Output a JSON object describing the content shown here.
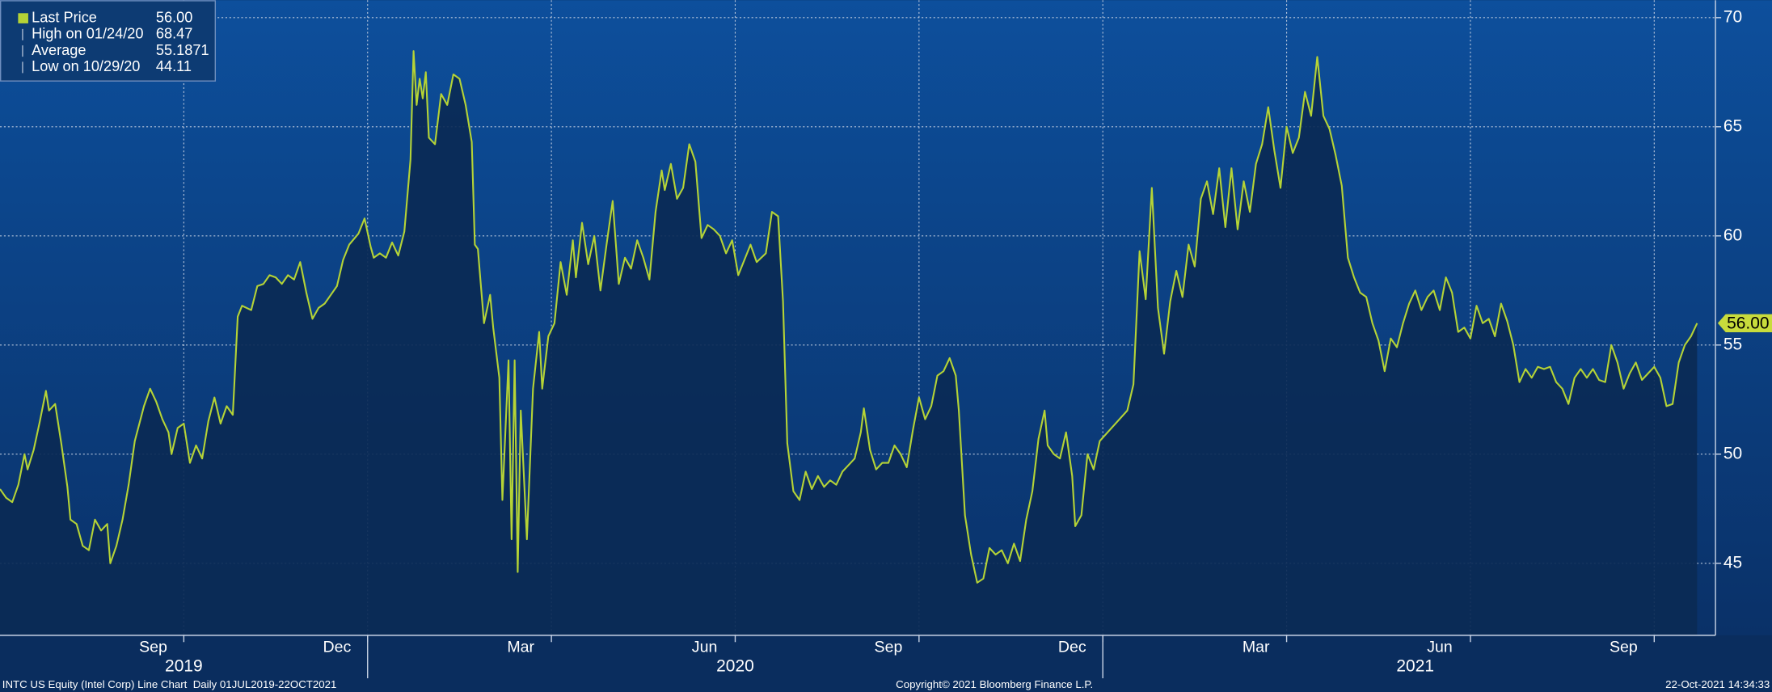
{
  "chart_data": {
    "type": "line",
    "series": [
      {
        "name": "Last Price",
        "color": "#b5d336",
        "x": [
          0,
          0.1,
          0.2,
          0.3,
          0.4,
          0.45,
          0.55,
          0.65,
          0.75,
          0.8,
          0.9,
          1.0,
          1.1,
          1.15,
          1.25,
          1.35,
          1.45,
          1.55,
          1.65,
          1.75,
          1.8,
          1.9,
          2.0,
          2.1,
          2.2,
          2.35,
          2.45,
          2.55,
          2.65,
          2.75,
          2.8,
          2.9,
          3.0,
          3.1,
          3.2,
          3.3,
          3.4,
          3.5,
          3.6,
          3.7,
          3.8,
          3.88,
          3.95,
          4.1,
          4.2,
          4.3,
          4.4,
          4.5,
          4.6,
          4.7,
          4.8,
          4.9,
          5.0,
          5.1,
          5.2,
          5.3,
          5.4,
          5.5,
          5.6,
          5.7,
          5.85,
          5.95,
          6.05,
          6.1,
          6.2,
          6.3,
          6.4,
          6.5,
          6.6,
          6.7,
          6.75,
          6.8,
          6.85,
          6.9,
          6.95,
          7.0,
          7.1,
          7.2,
          7.3,
          7.4,
          7.5,
          7.6,
          7.7,
          7.75,
          7.8,
          7.9,
          8.0,
          8.05,
          8.15,
          8.2,
          8.3,
          8.35,
          8.4,
          8.45,
          8.5,
          8.6,
          8.7,
          8.8,
          8.85,
          8.95,
          9.05,
          9.15,
          9.25,
          9.35,
          9.4,
          9.5,
          9.6,
          9.7,
          9.8,
          9.9,
          10.0,
          10.1,
          10.2,
          10.3,
          10.4,
          10.5,
          10.6,
          10.7,
          10.8,
          10.85,
          10.95,
          11.05,
          11.15,
          11.25,
          11.35,
          11.45,
          11.55,
          11.65,
          11.75,
          11.85,
          11.95,
          12.05,
          12.15,
          12.25,
          12.35,
          12.5,
          12.6,
          12.7,
          12.78,
          12.85,
          12.95,
          13.05,
          13.15,
          13.25,
          13.35,
          13.45,
          13.55,
          13.65,
          13.75,
          13.85,
          13.95,
          14.05,
          14.1,
          14.2,
          14.3,
          14.4,
          14.5,
          14.6,
          14.7,
          14.8,
          14.9,
          15.0,
          15.1,
          15.2,
          15.3,
          15.4,
          15.5,
          15.6,
          15.65,
          15.75,
          15.85,
          15.95,
          16.05,
          16.15,
          16.25,
          16.35,
          16.45,
          16.55,
          16.65,
          16.75,
          16.85,
          16.95,
          17.05,
          17.1,
          17.2,
          17.3,
          17.4,
          17.5,
          17.55,
          17.65,
          17.75,
          17.85,
          17.95,
          18.4,
          18.5,
          18.6,
          18.7,
          18.8,
          18.9,
          19.0,
          19.1,
          19.2,
          19.3,
          19.4,
          19.5,
          19.6,
          19.7,
          19.8,
          19.9,
          20.0,
          20.1,
          20.2,
          20.3,
          20.4,
          20.5,
          20.6,
          20.7,
          20.8,
          20.9,
          21.0,
          21.1,
          21.2,
          21.3,
          21.4,
          21.5,
          21.6,
          21.7,
          21.8,
          21.9,
          22.0,
          22.1,
          22.2,
          22.3,
          22.4,
          22.5,
          22.6,
          22.7,
          22.8,
          22.9,
          23.0,
          23.1,
          23.2,
          23.3,
          23.4,
          23.5,
          23.6,
          23.7,
          23.8,
          23.9,
          24.0,
          24.1,
          24.2,
          24.3,
          24.4,
          24.5,
          24.6,
          24.7,
          24.8,
          24.9,
          25.0,
          25.1,
          25.2,
          25.3,
          25.4,
          25.5,
          25.6,
          25.7,
          25.8,
          25.9,
          26.0,
          26.1,
          26.2,
          26.3,
          26.4,
          26.5,
          26.6,
          26.7,
          26.8,
          26.9,
          27.0,
          27.1,
          27.2,
          27.3,
          27.4,
          27.5,
          27.6,
          27.7
        ],
        "values": [
          48.4,
          48.0,
          47.8,
          48.6,
          50.0,
          49.3,
          50.2,
          51.5,
          52.9,
          52.0,
          52.3,
          50.5,
          48.5,
          47.0,
          46.8,
          45.8,
          45.6,
          47.0,
          46.5,
          46.8,
          45.0,
          45.8,
          47.0,
          48.6,
          50.6,
          52.2,
          53.0,
          52.4,
          51.6,
          51.0,
          50.0,
          51.2,
          51.4,
          49.6,
          50.4,
          49.8,
          51.5,
          52.6,
          51.4,
          52.2,
          51.8,
          56.3,
          56.8,
          56.6,
          57.7,
          57.8,
          58.2,
          58.1,
          57.8,
          58.2,
          58.0,
          58.8,
          57.4,
          56.2,
          56.7,
          56.9,
          57.3,
          57.7,
          58.9,
          59.6,
          60.1,
          60.8,
          59.5,
          59.0,
          59.2,
          59.0,
          59.7,
          59.1,
          60.2,
          63.5,
          68.47,
          66.0,
          67.2,
          66.3,
          67.5,
          64.5,
          64.2,
          66.5,
          66.0,
          67.4,
          67.2,
          66.0,
          64.3,
          59.6,
          59.4,
          56.0,
          57.3,
          55.8,
          53.5,
          47.9,
          54.3,
          46.1,
          54.3,
          44.6,
          52.0,
          46.1,
          53.0,
          55.6,
          53.0,
          55.4,
          56.0,
          58.8,
          57.3,
          59.8,
          58.1,
          60.6,
          58.7,
          60.0,
          57.5,
          59.6,
          61.6,
          57.8,
          59.0,
          58.5,
          59.8,
          59.0,
          58.0,
          61.1,
          63.0,
          62.1,
          63.3,
          61.7,
          62.2,
          64.2,
          63.4,
          59.9,
          60.5,
          60.3,
          60.0,
          59.2,
          59.8,
          58.2,
          58.9,
          59.6,
          58.8,
          59.2,
          61.1,
          60.9,
          57.0,
          50.5,
          48.3,
          47.9,
          49.2,
          48.4,
          49.0,
          48.5,
          48.8,
          48.6,
          49.2,
          49.5,
          49.8,
          51.0,
          52.1,
          50.2,
          49.3,
          49.6,
          49.6,
          50.4,
          50.0,
          49.4,
          51.1,
          52.6,
          51.6,
          52.2,
          53.6,
          53.8,
          54.4,
          53.6,
          52.0,
          47.2,
          45.4,
          44.11,
          44.3,
          45.7,
          45.4,
          45.6,
          45.0,
          45.9,
          45.1,
          47.0,
          48.3,
          50.7,
          52.0,
          50.4,
          50.0,
          49.8,
          51.0,
          49.0,
          46.7,
          47.2,
          50.0,
          49.3,
          50.6,
          52.0,
          53.2,
          59.3,
          57.1,
          62.2,
          56.7,
          54.6,
          57.0,
          58.4,
          57.2,
          59.6,
          58.6,
          61.7,
          62.5,
          61.0,
          63.1,
          60.4,
          63.1,
          60.3,
          62.5,
          61.1,
          63.3,
          64.2,
          65.9,
          63.9,
          62.2,
          65.0,
          63.8,
          64.5,
          66.6,
          65.5,
          68.2,
          65.5,
          64.9,
          63.7,
          62.3,
          59.0,
          58.1,
          57.4,
          57.2,
          56.0,
          55.2,
          53.8,
          55.3,
          54.9,
          56.0,
          56.9,
          57.5,
          56.6,
          57.2,
          57.5,
          56.6,
          58.1,
          57.4,
          55.6,
          55.8,
          55.3,
          56.8,
          56.0,
          56.2,
          55.4,
          56.9,
          56.1,
          55.0,
          53.3,
          53.9,
          53.5,
          54.0,
          53.9,
          54.0,
          53.3,
          53.0,
          52.3,
          53.5,
          53.9,
          53.5,
          53.9,
          53.4,
          53.3,
          55.0,
          54.2,
          53.0,
          53.7,
          54.2,
          53.4,
          53.7,
          54.0,
          53.5,
          52.2,
          52.3,
          54.2,
          55.0,
          55.4,
          56.0
        ]
      }
    ],
    "xlim": [
      0,
      28
    ],
    "ylim": [
      41.7,
      70.8
    ],
    "yticks": [
      45,
      50,
      55,
      60,
      65,
      70
    ],
    "xticks": [
      {
        "value": 2.5,
        "label": "Sep"
      },
      {
        "value": 5.5,
        "label": "Dec"
      },
      {
        "value": 8.5,
        "label": "Mar"
      },
      {
        "value": 11.5,
        "label": "Jun"
      },
      {
        "value": 14.5,
        "label": "Sep"
      },
      {
        "value": 17.5,
        "label": "Dec"
      },
      {
        "value": 20.5,
        "label": "Mar"
      },
      {
        "value": 23.5,
        "label": "Jun"
      },
      {
        "value": 26.5,
        "label": "Sep"
      }
    ],
    "year_ticks": [
      {
        "value": 3,
        "label": "2019"
      },
      {
        "value": 12,
        "label": "2020"
      },
      {
        "value": 23.1,
        "label": "2021"
      }
    ],
    "year_breaks": [
      6,
      18
    ],
    "xgrid": [
      3,
      6,
      9,
      12,
      15,
      18,
      21,
      24,
      27
    ],
    "grid": true,
    "legend": [
      {
        "name": "Last Price",
        "value": {
          "value": 56,
          "label": "56.00"
        }
      },
      {
        "name": "High on 01/24/20",
        "value": 68.47
      },
      {
        "name": "Average",
        "value": 55.1871
      },
      {
        "name": "Low on 10/29/20",
        "value": 44.11
      }
    ],
    "footer_left": "INTC US Equity (Intel Corp) Line Chart  Daily 01JUL2019-22OCT2021",
    "footer_center": "Copyright© 2021 Bloomberg Finance L.P.",
    "footer_right": "22-Oct-2021 14:34:33"
  }
}
